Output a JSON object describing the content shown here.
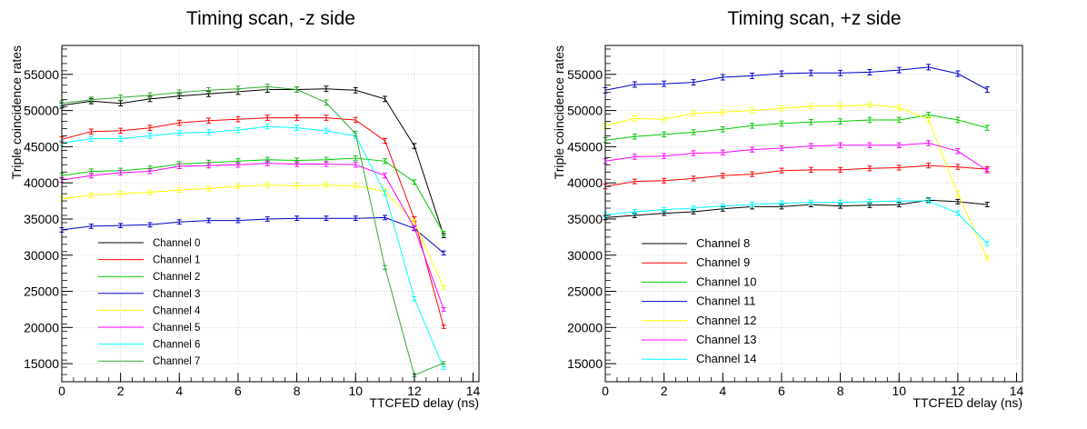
{
  "chart_data": [
    {
      "type": "line",
      "title": "Timing scan, -z side",
      "xlabel": "TTCFED delay (ns)",
      "ylabel": "Triple coincidence rates",
      "xlim": [
        0,
        14.2
      ],
      "ylim": [
        12500,
        59000
      ],
      "xticks": [
        0,
        2,
        4,
        6,
        8,
        10,
        12,
        14
      ],
      "yticks": [
        15000,
        20000,
        25000,
        30000,
        35000,
        40000,
        45000,
        50000,
        55000
      ],
      "grid": true,
      "legend_position": "bottom-left",
      "x": [
        0,
        1,
        2,
        3,
        4,
        5,
        6,
        7,
        8,
        9,
        10,
        11,
        12,
        13
      ],
      "series": [
        {
          "name": "Channel 0",
          "color": "#000000",
          "values": [
            50700,
            51300,
            51000,
            51600,
            52000,
            52300,
            52600,
            52900,
            52900,
            53000,
            52800,
            51600,
            45100,
            32700
          ]
        },
        {
          "name": "Channel 1",
          "color": "#ff0000",
          "values": [
            46000,
            47100,
            47200,
            47600,
            48300,
            48600,
            48800,
            49000,
            49000,
            49000,
            48700,
            45800,
            35000,
            20100
          ]
        },
        {
          "name": "Channel 2",
          "color": "#00cc00",
          "values": [
            41000,
            41600,
            41700,
            42000,
            42600,
            42800,
            43000,
            43200,
            43100,
            43200,
            43400,
            43000,
            40100,
            33000
          ]
        },
        {
          "name": "Channel 3",
          "color": "#0000cc",
          "values": [
            33500,
            34000,
            34100,
            34200,
            34600,
            34800,
            34800,
            35000,
            35100,
            35100,
            35100,
            35200,
            33700,
            30300
          ]
        },
        {
          "name": "Channel 4",
          "color": "#ffff00",
          "values": [
            37800,
            38300,
            38500,
            38700,
            39000,
            39200,
            39500,
            39700,
            39600,
            39700,
            39600,
            38800,
            34600,
            25500
          ]
        },
        {
          "name": "Channel 5",
          "color": "#ff00ff",
          "values": [
            40400,
            41000,
            41400,
            41600,
            42300,
            42400,
            42500,
            42700,
            42600,
            42600,
            42500,
            41000,
            33800,
            22500
          ]
        },
        {
          "name": "Channel 6",
          "color": "#00ffff",
          "values": [
            45500,
            46100,
            46100,
            46500,
            46900,
            47000,
            47300,
            47800,
            47600,
            47200,
            46500,
            38600,
            24000,
            14400
          ]
        },
        {
          "name": "Channel 7",
          "color": "#33aa33",
          "values": [
            51000,
            51500,
            51800,
            52100,
            52500,
            52800,
            53000,
            53300,
            52900,
            51100,
            46800,
            28300,
            13400,
            15100
          ]
        }
      ]
    },
    {
      "type": "line",
      "title": "Timing scan, +z side",
      "xlabel": "TTCFED delay (ns)",
      "ylabel": "Triple coincidence rates",
      "xlim": [
        0,
        14.2
      ],
      "ylim": [
        12500,
        59000
      ],
      "xticks": [
        0,
        2,
        4,
        6,
        8,
        10,
        12,
        14
      ],
      "yticks": [
        15000,
        20000,
        25000,
        30000,
        35000,
        40000,
        45000,
        50000,
        55000
      ],
      "grid": true,
      "legend_position": "bottom-left",
      "x": [
        0,
        1,
        2,
        3,
        4,
        5,
        6,
        7,
        8,
        9,
        10,
        11,
        12,
        13
      ],
      "series": [
        {
          "name": "Channel 8",
          "color": "#000000",
          "values": [
            35200,
            35500,
            35800,
            36000,
            36400,
            36700,
            36700,
            37000,
            36800,
            36900,
            37000,
            37600,
            37400,
            37000
          ]
        },
        {
          "name": "Channel 9",
          "color": "#ff0000",
          "values": [
            39500,
            40200,
            40300,
            40600,
            41000,
            41200,
            41700,
            41800,
            41800,
            42000,
            42100,
            42400,
            42200,
            41900
          ]
        },
        {
          "name": "Channel 10",
          "color": "#00cc00",
          "values": [
            45900,
            46400,
            46700,
            47000,
            47400,
            47900,
            48200,
            48400,
            48500,
            48700,
            48700,
            49400,
            48700,
            47600
          ]
        },
        {
          "name": "Channel 11",
          "color": "#0000cc",
          "values": [
            52800,
            53600,
            53700,
            53900,
            54600,
            54800,
            55100,
            55200,
            55200,
            55300,
            55600,
            56000,
            55100,
            52900
          ]
        },
        {
          "name": "Channel 12",
          "color": "#ffff00",
          "values": [
            47900,
            48900,
            48800,
            49600,
            49800,
            50000,
            50300,
            50600,
            50600,
            50800,
            50400,
            48800,
            38500,
            29600
          ]
        },
        {
          "name": "Channel 13",
          "color": "#ff00ff",
          "values": [
            43000,
            43600,
            43700,
            44100,
            44200,
            44600,
            44800,
            45100,
            45200,
            45200,
            45200,
            45500,
            44400,
            41700
          ]
        },
        {
          "name": "Channel 14",
          "color": "#00ffff",
          "values": [
            35600,
            36000,
            36300,
            36500,
            36800,
            37000,
            37200,
            37300,
            37300,
            37400,
            37500,
            37500,
            35800,
            31600
          ]
        }
      ]
    }
  ]
}
